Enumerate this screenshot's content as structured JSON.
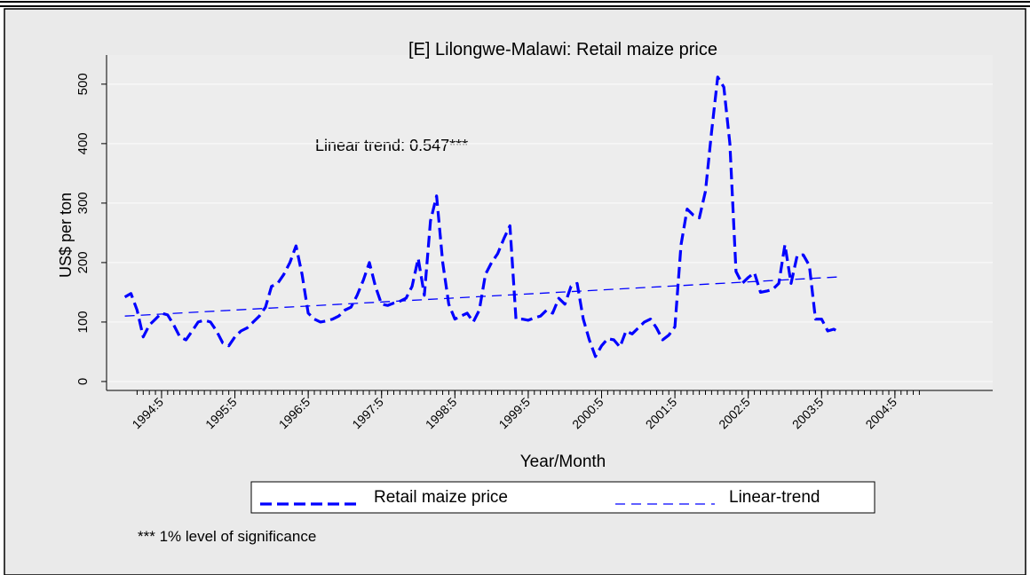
{
  "chart_data": {
    "type": "line",
    "title": "[E] Lilongwe-Malawi: Retail maize price",
    "x_label": "Year/Month",
    "y_label": "US$ per ton",
    "annotation": "Linear trend: 0.547***",
    "footnote": "*** 1% level of significance",
    "grid": true,
    "xlim": [
      "1993:8",
      "2005:9"
    ],
    "ylim": [
      -15,
      549
    ],
    "yticks": [
      0,
      100,
      200,
      300,
      400,
      500
    ],
    "xticks": [
      "1994:5",
      "1995:5",
      "1996:5",
      "1997:5",
      "1998:5",
      "1999:5",
      "2000:5",
      "2001:5",
      "2002:5",
      "2003:5",
      "2004:5"
    ],
    "x": [
      "1993:11",
      "1993:12",
      "1994:1",
      "1994:2",
      "1994:3",
      "1994:4",
      "1994:5",
      "1994:6",
      "1994:7",
      "1994:8",
      "1994:9",
      "1994:10",
      "1994:11",
      "1994:12",
      "1995:1",
      "1995:2",
      "1995:3",
      "1995:4",
      "1995:5",
      "1995:6",
      "1995:7",
      "1995:8",
      "1995:9",
      "1995:10",
      "1995:11",
      "1995:12",
      "1996:1",
      "1996:2",
      "1996:3",
      "1996:4",
      "1996:5",
      "1996:6",
      "1996:7",
      "1996:8",
      "1996:9",
      "1996:10",
      "1996:11",
      "1996:12",
      "1997:1",
      "1997:2",
      "1997:3",
      "1997:4",
      "1997:5",
      "1997:6",
      "1997:7",
      "1997:8",
      "1997:9",
      "1997:10",
      "1997:11",
      "1997:12",
      "1998:1",
      "1998:2",
      "1998:3",
      "1998:4",
      "1998:5",
      "1998:6",
      "1998:7",
      "1998:8",
      "1998:9",
      "1998:10",
      "1998:11",
      "1998:12",
      "1999:1",
      "1999:2",
      "1999:3",
      "1999:4",
      "1999:5",
      "1999:6",
      "1999:7",
      "1999:8",
      "1999:9",
      "1999:10",
      "1999:11",
      "1999:12",
      "2000:1",
      "2000:2",
      "2000:3",
      "2000:4",
      "2000:5",
      "2000:6",
      "2000:7",
      "2000:8",
      "2000:9",
      "2000:10",
      "2000:11",
      "2000:12",
      "2001:1",
      "2001:2",
      "2001:3",
      "2001:4",
      "2001:5",
      "2001:6",
      "2001:7",
      "2001:8",
      "2001:9",
      "2001:10",
      "2001:11",
      "2001:12",
      "2002:1",
      "2002:2",
      "2002:3",
      "2002:4",
      "2002:5",
      "2002:6",
      "2002:7",
      "2002:8",
      "2002:9",
      "2002:10",
      "2002:11",
      "2002:12",
      "2003:1",
      "2003:2",
      "2003:3",
      "2003:4",
      "2003:5",
      "2003:6",
      "2003:7",
      "2003:8"
    ],
    "series": [
      {
        "name": "Retail maize price",
        "color": "#0000ff",
        "values": [
          142,
          148,
          120,
          75,
          95,
          105,
          115,
          112,
          95,
          75,
          70,
          85,
          100,
          103,
          100,
          85,
          65,
          60,
          75,
          85,
          90,
          100,
          110,
          125,
          160,
          165,
          180,
          200,
          228,
          180,
          115,
          105,
          100,
          102,
          105,
          110,
          120,
          125,
          145,
          170,
          200,
          160,
          130,
          128,
          132,
          135,
          140,
          160,
          207,
          145,
          270,
          312,
          200,
          130,
          105,
          110,
          115,
          100,
          120,
          180,
          200,
          215,
          240,
          262,
          105,
          105,
          103,
          107,
          110,
          120,
          115,
          140,
          130,
          160,
          165,
          105,
          70,
          42,
          60,
          72,
          70,
          58,
          85,
          80,
          90,
          100,
          105,
          90,
          70,
          78,
          92,
          230,
          290,
          280,
          275,
          320,
          420,
          512,
          495,
          400,
          185,
          165,
          175,
          183,
          150,
          152,
          155,
          165,
          230,
          165,
          212,
          213,
          195,
          105,
          105,
          85,
          88,
          82
        ]
      },
      {
        "name": "Linear-trend",
        "color": "#0000ff",
        "x": [
          "1993:11",
          "2003:8"
        ],
        "values": [
          110,
          176
        ]
      }
    ]
  }
}
